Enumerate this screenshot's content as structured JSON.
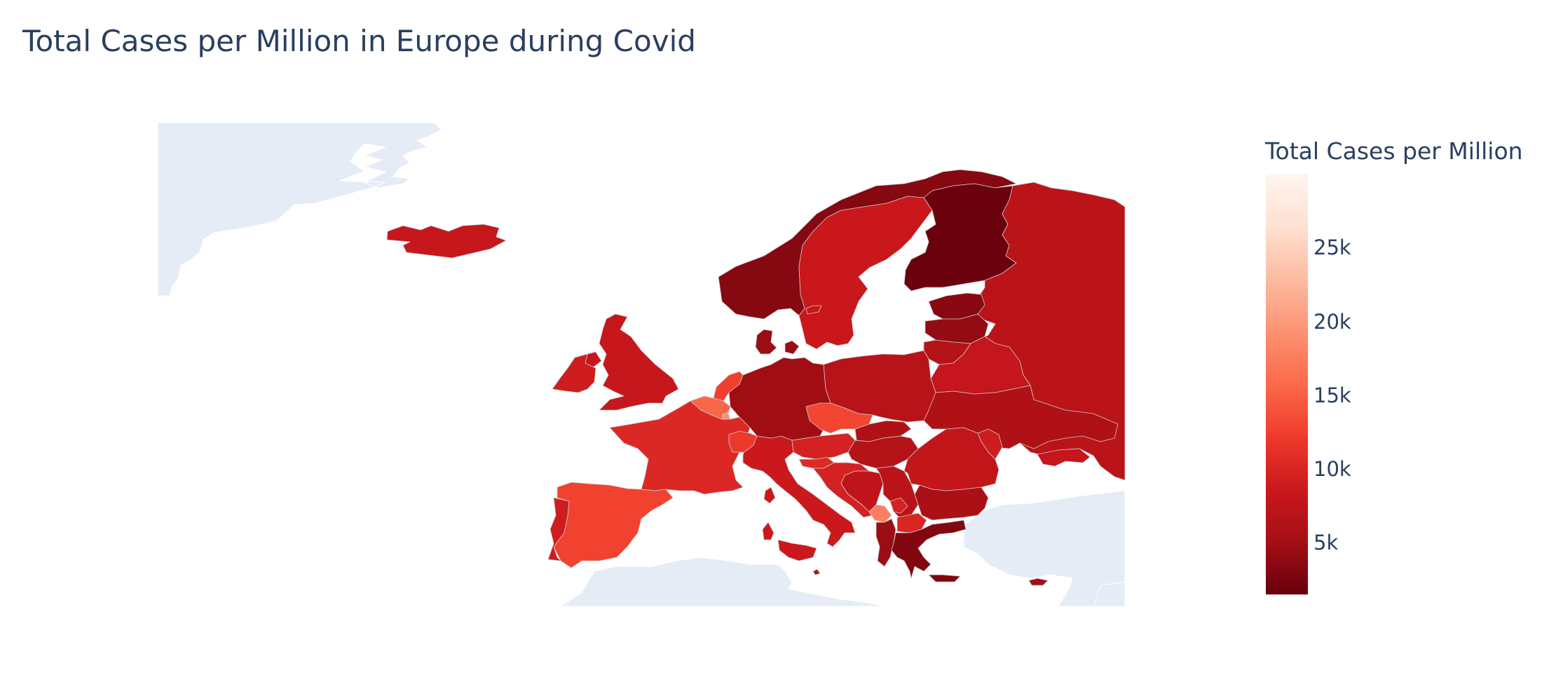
{
  "title": "Total Cases per Million in Europe during Covid",
  "colorbar": {
    "title": "Total Cases per Million",
    "ticks": [
      "25k",
      "20k",
      "15k",
      "10k",
      "5k"
    ],
    "tick_values": [
      25000,
      20000,
      15000,
      10000,
      5000
    ],
    "range": [
      1500,
      30000
    ],
    "colorscale": [
      "#67000d",
      "#a50f15",
      "#cb181d",
      "#ef3b2c",
      "#fb6a4a",
      "#fc9272",
      "#fcbba1",
      "#fee0d2",
      "#fff5f0"
    ]
  },
  "colors": {
    "land": "#e5ecf6",
    "ocean": "#ffffff",
    "border": "#cccccc"
  },
  "chart_data": {
    "type": "choropleth",
    "title": "Total Cases per Million in Europe during Covid",
    "colorbar_title": "Total Cases per Million",
    "scope": "europe",
    "countries": [
      {
        "name": "Iceland",
        "value": 8200
      },
      {
        "name": "Norway",
        "value": 3300
      },
      {
        "name": "Sweden",
        "value": 8400
      },
      {
        "name": "Finland",
        "value": 1800
      },
      {
        "name": "Russia",
        "value": 7000
      },
      {
        "name": "Estonia",
        "value": 3500
      },
      {
        "name": "Latvia",
        "value": 4000
      },
      {
        "name": "Lithuania",
        "value": 6500
      },
      {
        "name": "Belarus",
        "value": 8000
      },
      {
        "name": "Ukraine",
        "value": 6000
      },
      {
        "name": "Moldova",
        "value": 9000
      },
      {
        "name": "Poland",
        "value": 6800
      },
      {
        "name": "Germany",
        "value": 4800
      },
      {
        "name": "Denmark",
        "value": 4500
      },
      {
        "name": "United Kingdom",
        "value": 8100
      },
      {
        "name": "Ireland",
        "value": 9000
      },
      {
        "name": "Netherlands",
        "value": 12500
      },
      {
        "name": "Belgium",
        "value": 15500
      },
      {
        "name": "Luxembourg",
        "value": 19000
      },
      {
        "name": "France",
        "value": 10300
      },
      {
        "name": "Spain",
        "value": 12700
      },
      {
        "name": "Portugal",
        "value": 9000
      },
      {
        "name": "Italy",
        "value": 8600
      },
      {
        "name": "Switzerland",
        "value": 12000
      },
      {
        "name": "Austria",
        "value": 9500
      },
      {
        "name": "Czechia",
        "value": 13000
      },
      {
        "name": "Slovakia",
        "value": 6000
      },
      {
        "name": "Hungary",
        "value": 6500
      },
      {
        "name": "Slovenia",
        "value": 10500
      },
      {
        "name": "Croatia",
        "value": 9500
      },
      {
        "name": "Bosnia and Herzegovina",
        "value": 7500
      },
      {
        "name": "Serbia",
        "value": 7000
      },
      {
        "name": "Montenegro",
        "value": 17500
      },
      {
        "name": "Kosovo",
        "value": 9500
      },
      {
        "name": "Albania",
        "value": 4500
      },
      {
        "name": "North Macedonia",
        "value": 10000
      },
      {
        "name": "Romania",
        "value": 7800
      },
      {
        "name": "Bulgaria",
        "value": 5500
      },
      {
        "name": "Greece",
        "value": 3000
      },
      {
        "name": "Georgia",
        "value": 8000
      },
      {
        "name": "Cyprus",
        "value": 5000
      },
      {
        "name": "Malta",
        "value": 6000
      }
    ]
  }
}
